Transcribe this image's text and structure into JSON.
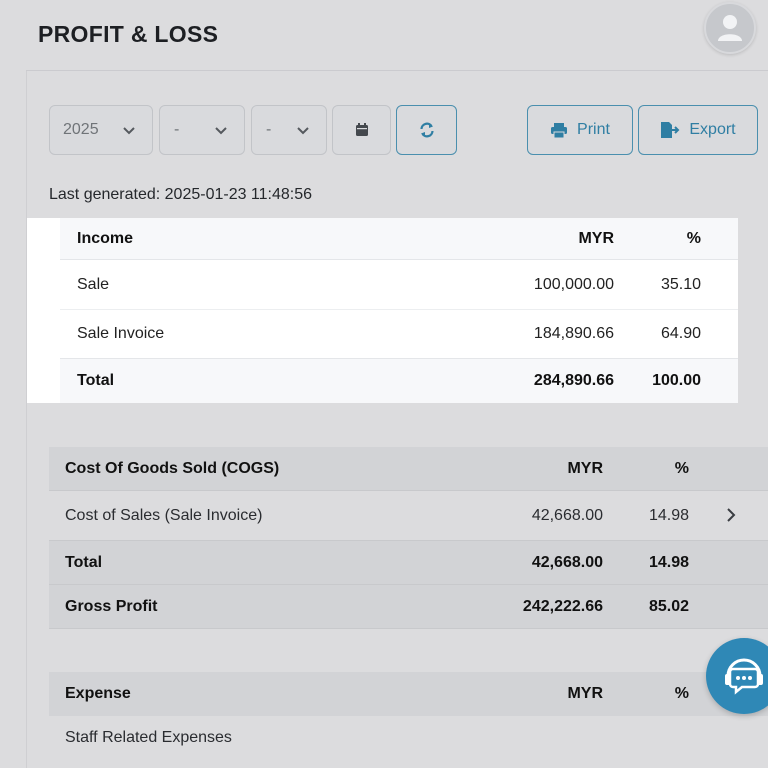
{
  "header": {
    "title": "PROFIT & LOSS"
  },
  "filters": {
    "year": "2025",
    "month": "-",
    "day": "-"
  },
  "actions": {
    "print_label": "Print",
    "export_label": "Export"
  },
  "last_generated": "Last generated: 2025-01-23 11:48:56",
  "income": {
    "header": {
      "name": "Income",
      "currency": "MYR",
      "pct": "%"
    },
    "rows": [
      {
        "name": "Sale",
        "amount": "100,000.00",
        "pct": "35.10"
      },
      {
        "name": "Sale Invoice",
        "amount": "184,890.66",
        "pct": "64.90"
      }
    ],
    "total": {
      "name": "Total",
      "amount": "284,890.66",
      "pct": "100.00"
    }
  },
  "cogs": {
    "header": {
      "name": "Cost Of Goods Sold (COGS)",
      "currency": "MYR",
      "pct": "%"
    },
    "rows": [
      {
        "name": "Cost of Sales (Sale Invoice)",
        "amount": "42,668.00",
        "pct": "14.98"
      }
    ],
    "total": {
      "name": "Total",
      "amount": "42,668.00",
      "pct": "14.98"
    },
    "gross_profit": {
      "name": "Gross Profit",
      "amount": "242,222.66",
      "pct": "85.02"
    }
  },
  "expense": {
    "header": {
      "name": "Expense",
      "currency": "MYR",
      "pct": "%"
    },
    "rows": [
      {
        "name": "Staff Related Expenses"
      }
    ]
  },
  "colors": {
    "accent": "#2f88b6",
    "overlay": "#dcdcde",
    "highlight": "#ffffff"
  }
}
